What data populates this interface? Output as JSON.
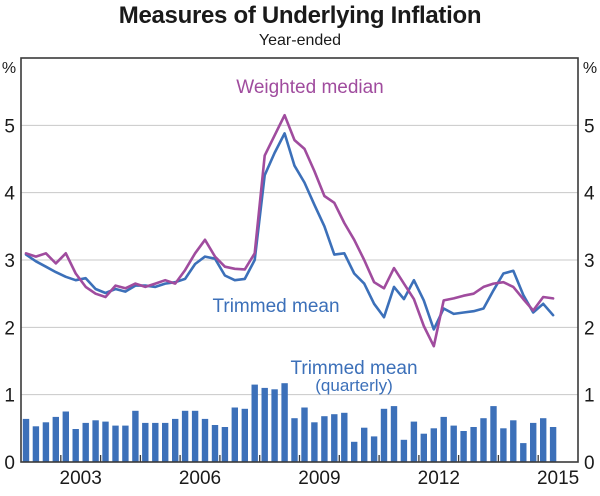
{
  "page": {
    "title": "Measures of Underlying Inflation",
    "subtitle": "Year-ended"
  },
  "chart_data": {
    "type": "composite",
    "title": "Measures of Underlying Inflation",
    "subtitle": "Year-ended",
    "y_axis": {
      "unit_left": "%",
      "unit_right": "%",
      "ylim": [
        0,
        6
      ],
      "ticks": [
        0,
        1,
        2,
        3,
        4,
        5
      ],
      "grid": true,
      "labels_both_sides": true
    },
    "x_axis": {
      "range_years": [
        2002,
        2016
      ],
      "tick_interval_years": 1,
      "labeled_years": [
        2003,
        2006,
        2009,
        2012,
        2015
      ]
    },
    "quarters": [
      "2002Q1",
      "2002Q2",
      "2002Q3",
      "2002Q4",
      "2003Q1",
      "2003Q2",
      "2003Q3",
      "2003Q4",
      "2004Q1",
      "2004Q2",
      "2004Q3",
      "2004Q4",
      "2005Q1",
      "2005Q2",
      "2005Q3",
      "2005Q4",
      "2006Q1",
      "2006Q2",
      "2006Q3",
      "2006Q4",
      "2007Q1",
      "2007Q2",
      "2007Q3",
      "2007Q4",
      "2008Q1",
      "2008Q2",
      "2008Q3",
      "2008Q4",
      "2009Q1",
      "2009Q2",
      "2009Q3",
      "2009Q4",
      "2010Q1",
      "2010Q2",
      "2010Q3",
      "2010Q4",
      "2011Q1",
      "2011Q2",
      "2011Q3",
      "2011Q4",
      "2012Q1",
      "2012Q2",
      "2012Q3",
      "2012Q4",
      "2013Q1",
      "2013Q2",
      "2013Q3",
      "2013Q4",
      "2014Q1",
      "2014Q2",
      "2014Q3",
      "2014Q4",
      "2015Q1",
      "2015Q2"
    ],
    "series": [
      {
        "name": "Weighted median",
        "type": "line",
        "frequency": "year-ended",
        "color": "#A04C9E",
        "values": [
          3.1,
          3.05,
          3.1,
          2.95,
          3.1,
          2.8,
          2.6,
          2.5,
          2.45,
          2.62,
          2.58,
          2.65,
          2.6,
          2.65,
          2.7,
          2.65,
          2.85,
          3.1,
          3.3,
          3.05,
          2.9,
          2.87,
          2.86,
          3.1,
          4.55,
          4.85,
          5.15,
          4.78,
          4.65,
          4.32,
          3.95,
          3.85,
          3.55,
          3.3,
          3.0,
          2.67,
          2.58,
          2.88,
          2.65,
          2.42,
          2.02,
          1.72,
          2.4,
          2.43,
          2.47,
          2.5,
          2.6,
          2.65,
          2.67,
          2.6,
          2.42,
          2.25,
          2.45,
          2.43
        ]
      },
      {
        "name": "Trimmed mean",
        "type": "line",
        "frequency": "year-ended",
        "color": "#3C70B9",
        "values": [
          3.08,
          2.98,
          2.9,
          2.82,
          2.75,
          2.7,
          2.73,
          2.57,
          2.51,
          2.57,
          2.53,
          2.62,
          2.62,
          2.6,
          2.65,
          2.67,
          2.72,
          2.94,
          3.05,
          3.02,
          2.77,
          2.7,
          2.72,
          3.0,
          4.26,
          4.59,
          4.88,
          4.4,
          4.15,
          3.82,
          3.5,
          3.08,
          3.1,
          2.8,
          2.65,
          2.35,
          2.15,
          2.6,
          2.42,
          2.7,
          2.4,
          1.97,
          2.28,
          2.2,
          2.22,
          2.24,
          2.28,
          2.55,
          2.8,
          2.84,
          2.48,
          2.22,
          2.35,
          2.18
        ]
      },
      {
        "name": "Trimmed mean (quarterly)",
        "type": "bar",
        "frequency": "quarterly",
        "color": "#3C70B9",
        "values": [
          0.64,
          0.53,
          0.59,
          0.67,
          0.75,
          0.49,
          0.58,
          0.62,
          0.6,
          0.54,
          0.54,
          0.76,
          0.58,
          0.58,
          0.58,
          0.64,
          0.76,
          0.76,
          0.64,
          0.55,
          0.52,
          0.81,
          0.79,
          1.15,
          1.1,
          1.08,
          1.17,
          0.65,
          0.81,
          0.59,
          0.68,
          0.71,
          0.73,
          0.3,
          0.51,
          0.38,
          0.79,
          0.83,
          0.33,
          0.6,
          0.42,
          0.5,
          0.67,
          0.54,
          0.46,
          0.52,
          0.65,
          0.83,
          0.5,
          0.62,
          0.28,
          0.58,
          0.65,
          0.52
        ]
      }
    ],
    "annotations": [
      {
        "text": "Weighted median",
        "color": "#A04C9E"
      },
      {
        "text": "Trimmed mean",
        "color": "#3C70B9"
      },
      {
        "text": "Trimmed mean",
        "color": "#3C70B9"
      },
      {
        "text": "(quarterly)",
        "color": "#3C70B9"
      }
    ],
    "colors": {
      "grid": "#C8C8C8",
      "axis": "#3A3A3A",
      "text": "#1A1A1A"
    }
  }
}
